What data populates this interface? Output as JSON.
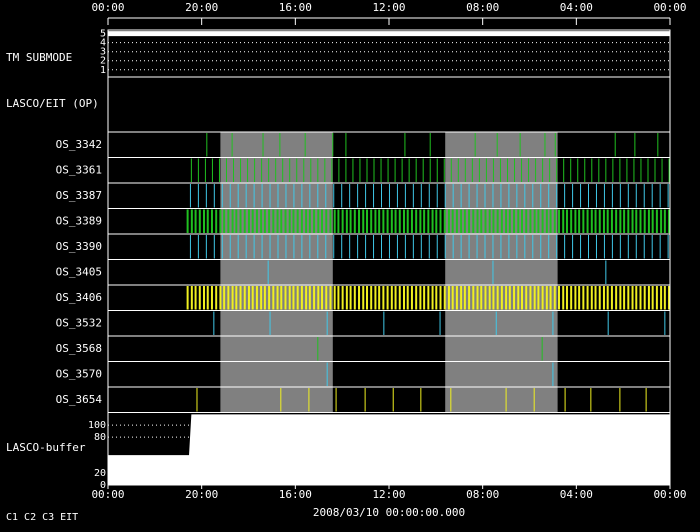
{
  "chart_data": {
    "type": "timeline",
    "x_label": "2008/03/10 00:00:00.000",
    "xlim": [
      0,
      120
    ],
    "xticks": [
      {
        "value": 0,
        "label": "00:00"
      },
      {
        "value": 20,
        "label": "20:00"
      },
      {
        "value": 40,
        "label": "16:00"
      },
      {
        "value": 60,
        "label": "12:00"
      },
      {
        "value": 80,
        "label": "08:00"
      },
      {
        "value": 100,
        "label": "04:00"
      },
      {
        "value": 120,
        "label": "00:00"
      }
    ],
    "shaded": [
      [
        24,
        48
      ],
      [
        72,
        96
      ]
    ],
    "shade_color": "#808080",
    "legend": [
      {
        "name": "C1",
        "color": "#ff2020"
      },
      {
        "name": "C2",
        "color": "#20e020"
      },
      {
        "name": "C3",
        "color": "#ffffff"
      },
      {
        "name": "EIT",
        "color": "#ffffff"
      }
    ],
    "submode": {
      "label": "TM SUBMODE",
      "ylim": [
        0.2,
        5.4
      ],
      "yticks": [
        1,
        2,
        3,
        4,
        5
      ],
      "x": [
        0,
        120
      ],
      "values": [
        5,
        5
      ],
      "color": "#ffffff"
    },
    "section_label": "LASCO/EIT (OP)",
    "rows": [
      {
        "name": "OS_3342",
        "color": "#20c020",
        "events": [
          21.1,
          26.5,
          33.1,
          36.7,
          42.1,
          48.0,
          50.8,
          63.4,
          68.8,
          78.4,
          83.1,
          88.0,
          93.3,
          95.5,
          108.3,
          112.5,
          117.4
        ]
      },
      {
        "name": "OS_3361",
        "color": "#20c020",
        "events": [
          17.8,
          19.3,
          20.8,
          22.3,
          23.8,
          25.3,
          26.8,
          28.3,
          29.8,
          31.3,
          32.8,
          34.3,
          35.8,
          37.3,
          38.8,
          40.3,
          41.8,
          43.3,
          44.8,
          46.3,
          47.8,
          49.3,
          50.8,
          52.3,
          53.8,
          55.3,
          56.8,
          58.3,
          59.8,
          61.3,
          62.8,
          64.3,
          65.8,
          67.3,
          68.8,
          70.3,
          71.8,
          73.3,
          74.8,
          76.3,
          77.8,
          79.3,
          80.8,
          82.3,
          83.8,
          85.3,
          86.8,
          88.3,
          89.8,
          91.3,
          92.8,
          94.3,
          95.8,
          97.3,
          98.8,
          100.3,
          101.8,
          103.3,
          104.8,
          106.3,
          107.8,
          109.3,
          110.8,
          112.3,
          113.8,
          115.3,
          116.8,
          118.3,
          119.8
        ]
      },
      {
        "name": "OS_3387",
        "color": "#40c8e8",
        "events": [
          17.6,
          19.3,
          21.0,
          22.7,
          24.4,
          26.1,
          27.8,
          29.5,
          31.2,
          32.9,
          34.6,
          36.3,
          38.0,
          39.7,
          41.4,
          43.1,
          44.8,
          46.5,
          48.2,
          49.9,
          51.6,
          53.3,
          55.0,
          56.7,
          58.4,
          60.1,
          61.8,
          63.5,
          65.2,
          66.9,
          68.6,
          70.3,
          72.0,
          73.7,
          75.4,
          77.1,
          78.8,
          80.5,
          82.2,
          83.9,
          85.6,
          87.3,
          89.0,
          90.7,
          92.4,
          94.1,
          95.8,
          97.5,
          99.2,
          100.9,
          102.6,
          104.3,
          106.0,
          107.7,
          109.4,
          111.1,
          112.8,
          114.5,
          116.2,
          117.9,
          119.6
        ]
      },
      {
        "name": "OS_3389",
        "color": "#20c020",
        "events": [
          17.0,
          17.9,
          18.7,
          19.6,
          20.5,
          21.3,
          22.2,
          23.1,
          24.0,
          24.8,
          25.7,
          26.6,
          27.4,
          28.3,
          29.2,
          30.1,
          30.9,
          31.8,
          32.7,
          33.5,
          34.4,
          35.3,
          36.2,
          37.0,
          37.9,
          38.8,
          39.6,
          40.5,
          41.4,
          42.3,
          43.1,
          44.0,
          44.9,
          45.7,
          46.6,
          47.5,
          48.4,
          49.2,
          50.1,
          51.0,
          51.8,
          52.7,
          53.6,
          54.5,
          55.3,
          56.2,
          57.1,
          57.9,
          58.8,
          59.7,
          60.6,
          61.4,
          62.3,
          63.2,
          64.0,
          64.9,
          65.8,
          66.7,
          67.5,
          68.4,
          69.3,
          70.1,
          71.0,
          71.9,
          72.8,
          73.6,
          74.5,
          75.4,
          76.2,
          77.1,
          78.0,
          78.9,
          79.7,
          80.6,
          81.5,
          82.3,
          83.2,
          84.1,
          85.0,
          85.8,
          86.7,
          87.6,
          88.4,
          89.3,
          90.2,
          91.1,
          91.9,
          92.8,
          93.7,
          94.5,
          95.4,
          96.3,
          97.2,
          98.0,
          98.9,
          99.8,
          100.6,
          101.5,
          102.4,
          103.3,
          104.1,
          105.0,
          105.9,
          106.7,
          107.6,
          108.5,
          109.4,
          110.2,
          111.1,
          112.0,
          112.8,
          113.7,
          114.6,
          115.5,
          116.3,
          117.2,
          118.1,
          118.9,
          119.8
        ]
      },
      {
        "name": "OS_3390",
        "color": "#40c8e8",
        "events": [
          17.6,
          19.3,
          21.0,
          22.7,
          24.4,
          26.1,
          27.8,
          29.5,
          31.2,
          32.9,
          34.6,
          36.3,
          38.0,
          39.7,
          41.4,
          43.1,
          44.8,
          46.5,
          48.2,
          49.9,
          51.6,
          53.3,
          55.0,
          56.7,
          58.4,
          60.1,
          61.8,
          63.5,
          65.2,
          66.9,
          68.6,
          70.3,
          72.0,
          73.7,
          75.4,
          77.1,
          78.8,
          80.5,
          82.2,
          83.9,
          85.6,
          87.3,
          89.0,
          90.7,
          92.4,
          94.1,
          95.8,
          97.5,
          99.2,
          100.9,
          102.6,
          104.3,
          106.0,
          107.7,
          109.4,
          111.1,
          112.8,
          114.5,
          116.2,
          117.9,
          119.6
        ]
      },
      {
        "name": "OS_3405",
        "color": "#40c8e8",
        "events": [
          34.2,
          82.2,
          106.3
        ]
      },
      {
        "name": "OS_3406",
        "color": "#f0f020",
        "events": [
          17.0,
          17.9,
          18.7,
          19.6,
          20.5,
          21.3,
          22.2,
          23.1,
          24.0,
          24.8,
          25.7,
          26.6,
          27.4,
          28.3,
          29.2,
          30.1,
          30.9,
          31.8,
          32.7,
          33.5,
          34.4,
          35.3,
          36.2,
          37.0,
          37.9,
          38.8,
          39.6,
          40.5,
          41.4,
          42.3,
          43.1,
          44.0,
          44.9,
          45.7,
          46.6,
          47.5,
          48.4,
          49.2,
          50.1,
          51.0,
          51.8,
          52.7,
          53.6,
          54.5,
          55.3,
          56.2,
          57.1,
          57.9,
          58.8,
          59.7,
          60.6,
          61.4,
          62.3,
          63.2,
          64.0,
          64.9,
          65.8,
          66.7,
          67.5,
          68.4,
          69.3,
          70.1,
          71.0,
          71.9,
          72.8,
          73.6,
          74.5,
          75.4,
          76.2,
          77.1,
          78.0,
          78.9,
          79.7,
          80.6,
          81.5,
          82.3,
          83.2,
          84.1,
          85.0,
          85.8,
          86.7,
          87.6,
          88.4,
          89.3,
          90.2,
          91.1,
          91.9,
          92.8,
          93.7,
          94.5,
          95.4,
          96.3,
          97.2,
          98.0,
          98.9,
          99.8,
          100.6,
          101.5,
          102.4,
          103.3,
          104.1,
          105.0,
          105.9,
          106.7,
          107.6,
          108.5,
          109.4,
          110.2,
          111.1,
          112.0,
          112.8,
          113.7,
          114.6,
          115.5,
          116.3,
          117.2,
          118.1,
          118.9,
          119.8
        ]
      },
      {
        "name": "OS_3532",
        "color": "#40c8e8",
        "events": [
          22.6,
          34.6,
          46.8,
          58.9,
          70.9,
          82.9,
          95.0,
          106.8,
          118.9
        ]
      },
      {
        "name": "OS_3568",
        "color": "#20c020",
        "events": [
          44.8,
          92.7
        ]
      },
      {
        "name": "OS_3570",
        "color": "#40c8e8",
        "events": [
          46.8,
          95.0
        ]
      },
      {
        "name": "OS_3654",
        "color": "#f0f020",
        "events": [
          19.0,
          36.9,
          42.9,
          48.7,
          54.9,
          60.9,
          66.8,
          73.2,
          85.0,
          91.0,
          97.6,
          103.1,
          109.3,
          114.9
        ]
      }
    ],
    "buffer": {
      "label": "LASCO-buffer",
      "ylim": [
        0,
        122
      ],
      "yticks": [
        0,
        20,
        80,
        100
      ],
      "x": [
        0,
        17.3,
        17.8,
        120
      ],
      "values": [
        50,
        50,
        118,
        118
      ],
      "color": "#ffffff"
    }
  }
}
